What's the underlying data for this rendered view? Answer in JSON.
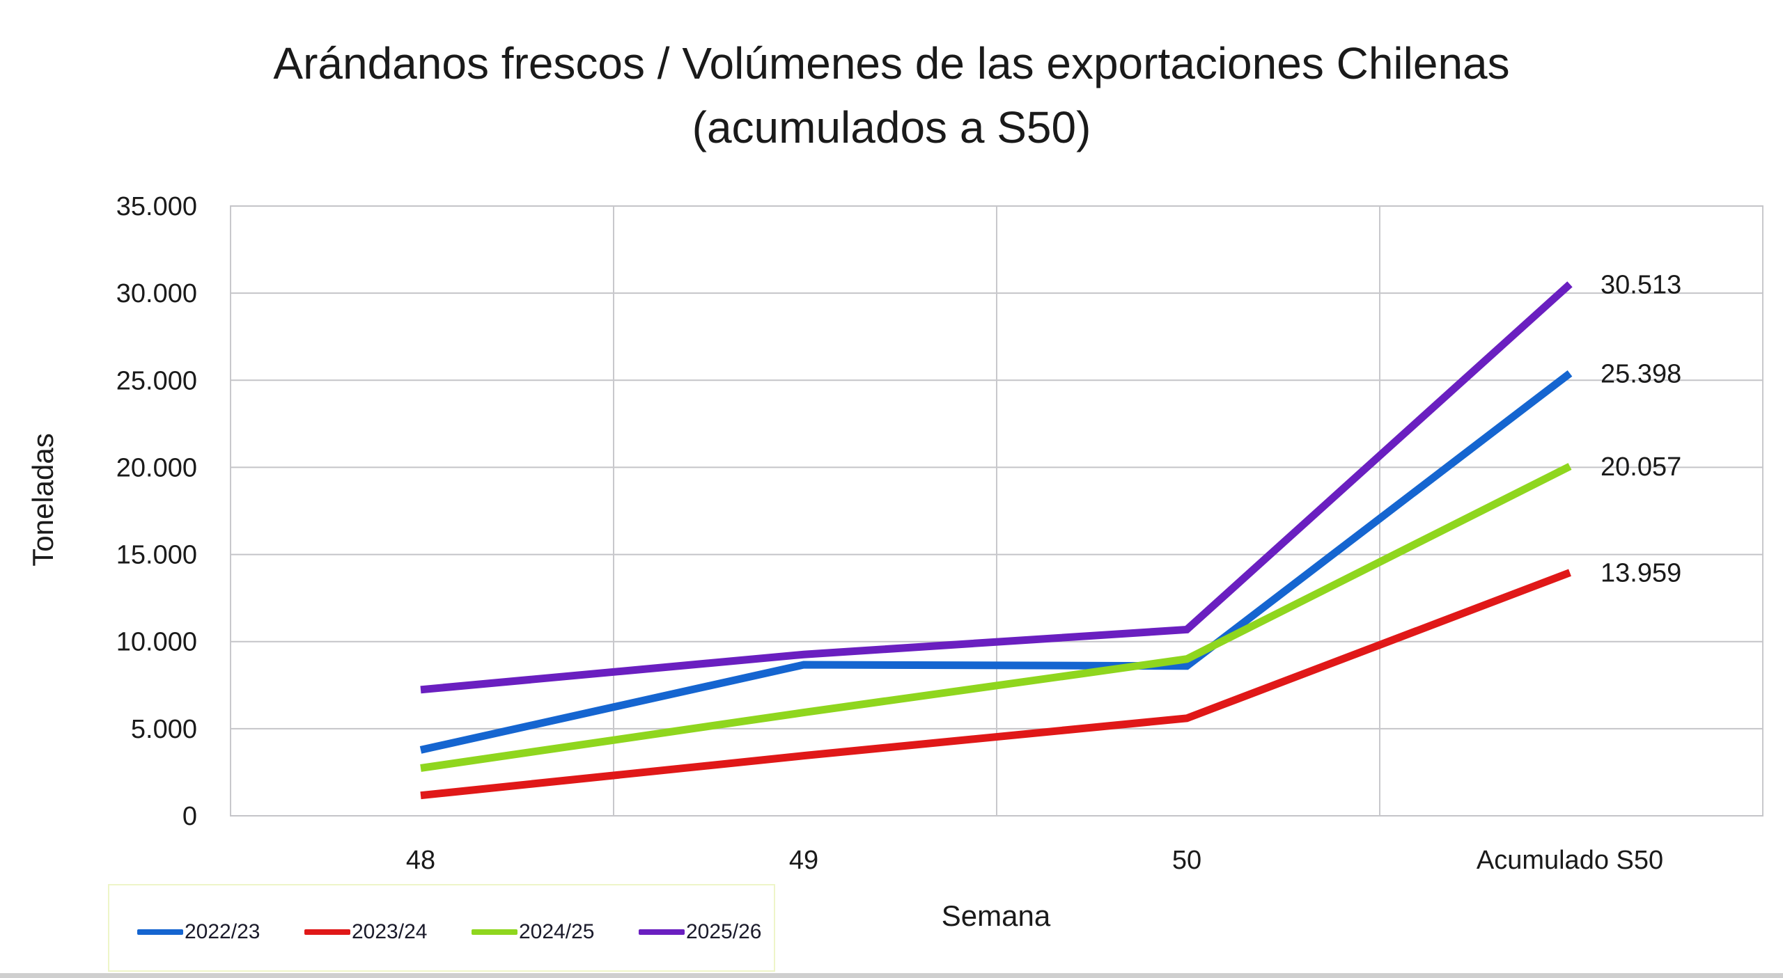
{
  "chart_data": {
    "type": "line",
    "title": "Arándanos frescos / Volúmenes de las exportaciones Chilenas",
    "subtitle": "(acumulados a S50)",
    "xlabel": "Semana",
    "ylabel": "Toneladas",
    "categories": [
      "48",
      "49",
      "50",
      "Acumulado S50"
    ],
    "ylim": [
      0,
      35000
    ],
    "yticks": [
      0,
      5000,
      10000,
      15000,
      20000,
      25000,
      30000,
      35000
    ],
    "ytick_labels": [
      "0",
      "5.000",
      "10.000",
      "15.000",
      "20.000",
      "25.000",
      "30.000",
      "35.000"
    ],
    "grid": true,
    "legend_position": "bottom-left",
    "series": [
      {
        "name": "2022/23",
        "color": "#1565d0",
        "values": [
          3780,
          8670,
          8600,
          25398
        ],
        "end_label": "25.398"
      },
      {
        "name": "2023/24",
        "color": "#e01818",
        "values": [
          1170,
          3450,
          5600,
          13959
        ],
        "end_label": "13.959"
      },
      {
        "name": "2024/25",
        "color": "#8fd61e",
        "values": [
          2740,
          5930,
          9000,
          20057
        ],
        "end_label": "20.057"
      },
      {
        "name": "2025/26",
        "color": "#6a1fc0",
        "values": [
          7240,
          9260,
          10690,
          30513
        ],
        "end_label": "30.513"
      }
    ]
  }
}
